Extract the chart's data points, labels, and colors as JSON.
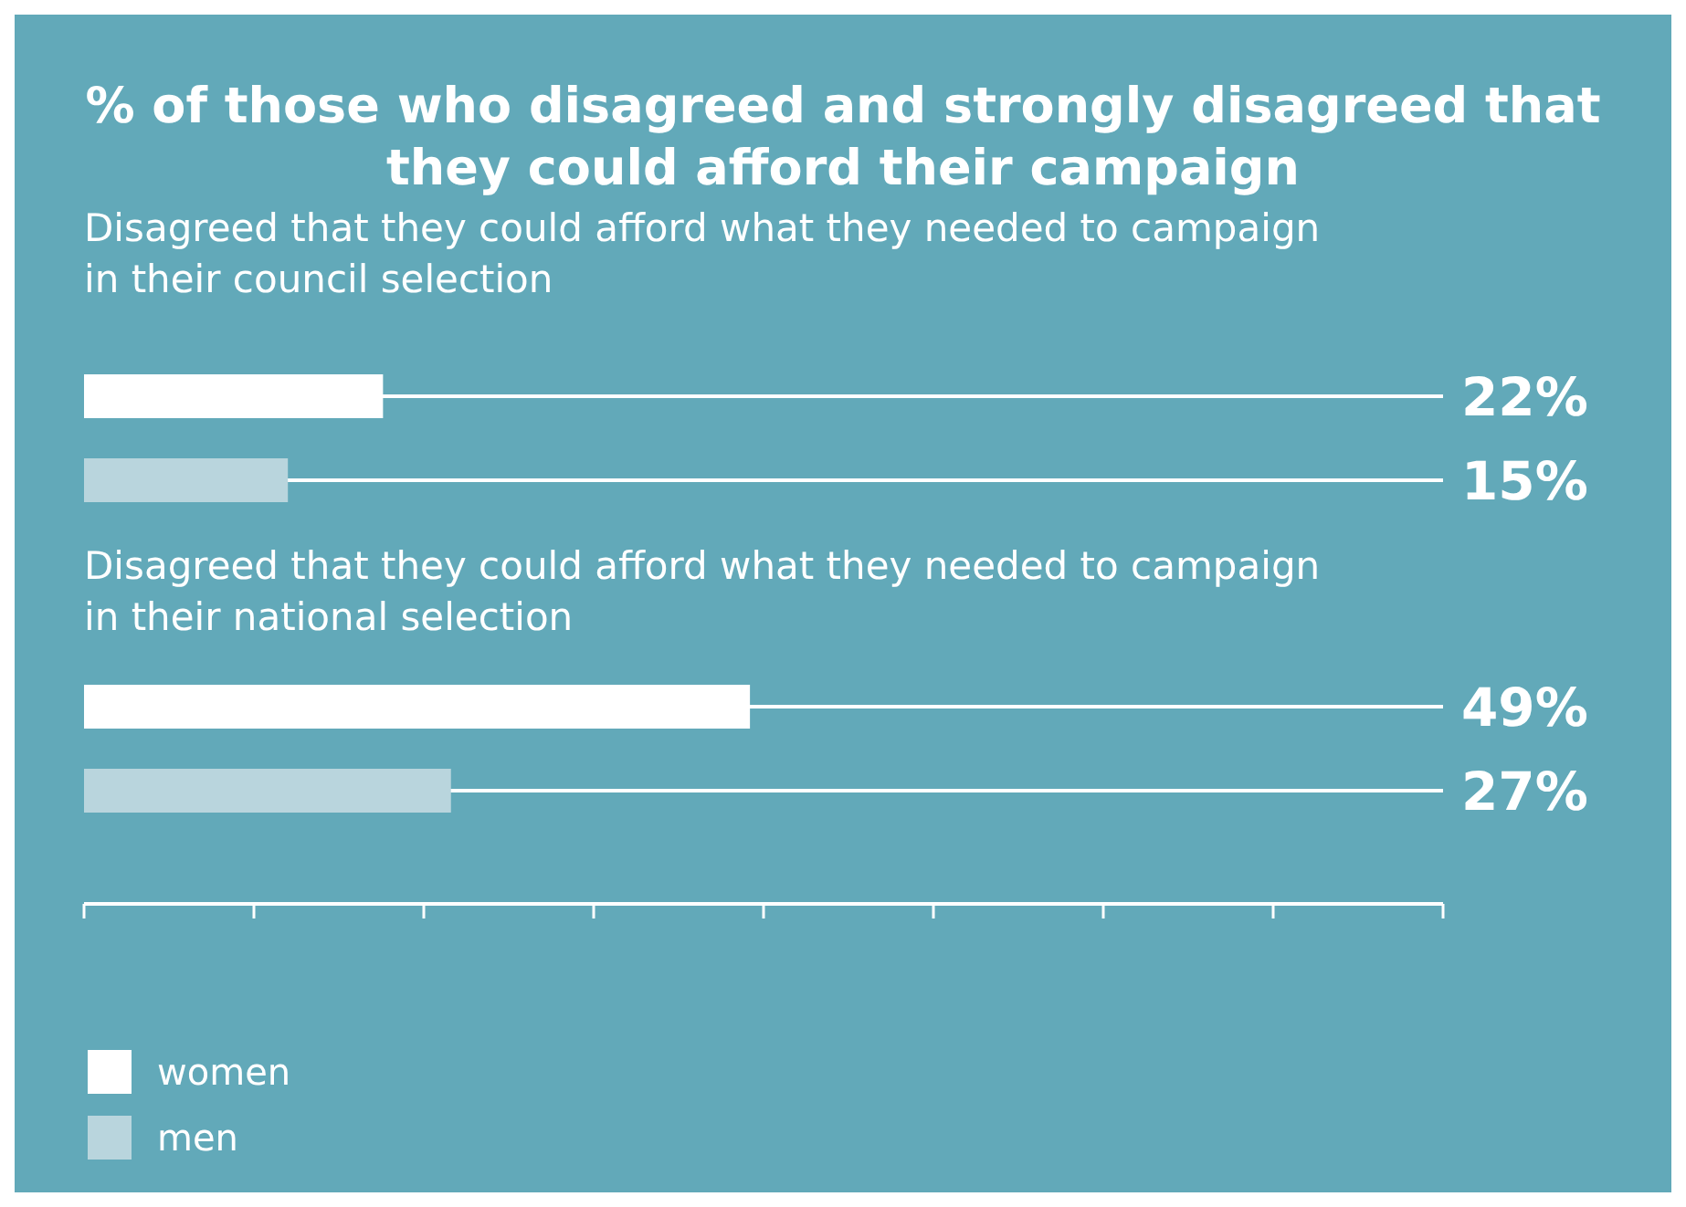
{
  "chart_data": {
    "type": "bar",
    "orientation": "horizontal",
    "title": "% of those who disagreed and strongly disagreed that they could afford their campaign",
    "categories": [
      "Disagreed that they could afford what they needed to campaign in their council selection",
      "Disagreed that they could afford what they needed to campaign in their national selection"
    ],
    "series": [
      {
        "name": "women",
        "color": "#ffffff",
        "values": [
          22,
          49
        ],
        "value_labels": [
          "22%",
          "49%"
        ]
      },
      {
        "name": "men",
        "color": "#b9d5dd",
        "values": [
          15,
          27
        ],
        "value_labels": [
          "15%",
          "27%"
        ]
      }
    ],
    "xlim": [
      0,
      100
    ],
    "xticks": [
      {
        "value": 0,
        "label": null
      },
      {
        "value": 12.5,
        "label": null
      },
      {
        "value": 25,
        "label": null
      },
      {
        "value": 37.5,
        "label": null
      },
      {
        "value": 50,
        "label": null
      },
      {
        "value": 62.5,
        "label": null
      },
      {
        "value": 75,
        "label": null
      },
      {
        "value": 87.5,
        "label": null
      },
      {
        "value": 100,
        "label": null
      }
    ],
    "tick_labels": "y",
    "grid": "y",
    "legend": "bottom left"
  }
}
